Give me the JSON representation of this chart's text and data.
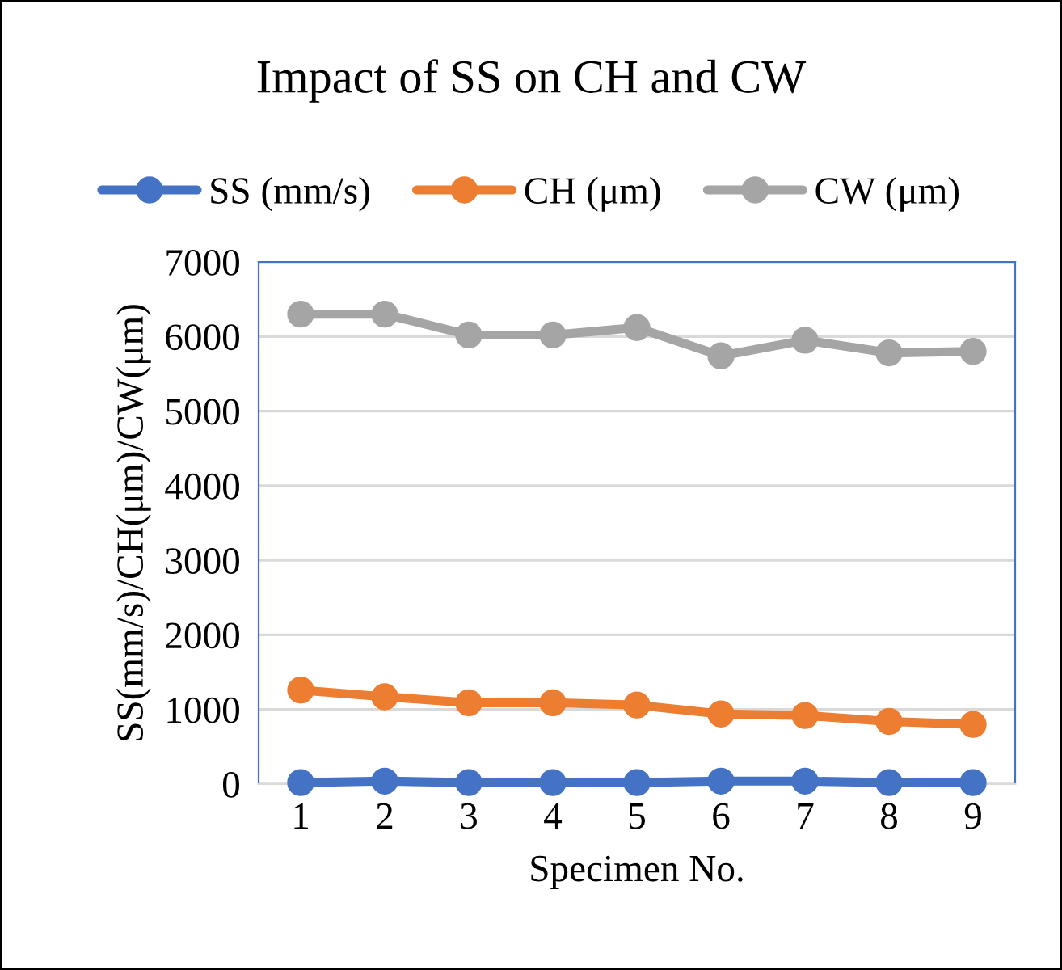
{
  "chart_data": {
    "type": "line",
    "title": "Impact of SS on CH and CW",
    "xlabel": "Specimen No.",
    "ylabel": "SS(mm/s)/CH(μm)/CW(μm)",
    "categories": [
      "1",
      "2",
      "3",
      "4",
      "5",
      "6",
      "7",
      "8",
      "9"
    ],
    "series": [
      {
        "name": "SS (mm/s)",
        "color": "#4472c4",
        "values": [
          20,
          40,
          20,
          20,
          20,
          40,
          40,
          20,
          20
        ]
      },
      {
        "name": "CH (μm)",
        "color": "#ed7d31",
        "values": [
          1260,
          1170,
          1090,
          1090,
          1060,
          940,
          920,
          840,
          800
        ]
      },
      {
        "name": "CW (μm)",
        "color": "#a5a5a5",
        "values": [
          6300,
          6300,
          6020,
          6020,
          6120,
          5740,
          5950,
          5780,
          5800
        ]
      }
    ],
    "ylim": [
      0,
      7000
    ],
    "yticks": [
      0,
      1000,
      2000,
      3000,
      4000,
      5000,
      6000,
      7000
    ],
    "grid": "y",
    "legend": "top",
    "marker": "circle",
    "line_style": "solid"
  }
}
